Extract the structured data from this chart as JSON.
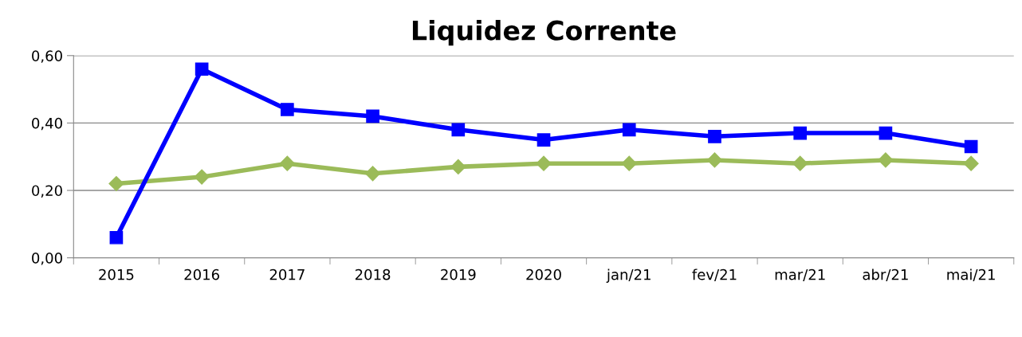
{
  "chart_data": {
    "type": "line",
    "title": "Liquidez Corrente",
    "categories": [
      "2015",
      "2016",
      "2017",
      "2018",
      "2019",
      "2020",
      "jan/21",
      "fev/21",
      "mar/21",
      "abr/21",
      "mai/21"
    ],
    "series": [
      {
        "color": "#9bbb59",
        "marker": "diamond",
        "values": [
          0.22,
          0.24,
          0.28,
          0.25,
          0.27,
          0.28,
          0.28,
          0.29,
          0.28,
          0.29,
          0.28
        ]
      },
      {
        "color": "#0000ff",
        "marker": "square",
        "values": [
          0.06,
          0.56,
          0.44,
          0.42,
          0.38,
          0.35,
          0.38,
          0.36,
          0.37,
          0.37,
          0.33
        ]
      }
    ],
    "ylim": [
      0,
      0.6
    ],
    "yticks": [
      {
        "value": 0,
        "label": "0,00"
      },
      {
        "value": 0.2,
        "label": "0,20"
      },
      {
        "value": 0.4,
        "label": "0,40"
      },
      {
        "value": 0.6,
        "label": "0,60"
      }
    ],
    "grid": "y"
  }
}
